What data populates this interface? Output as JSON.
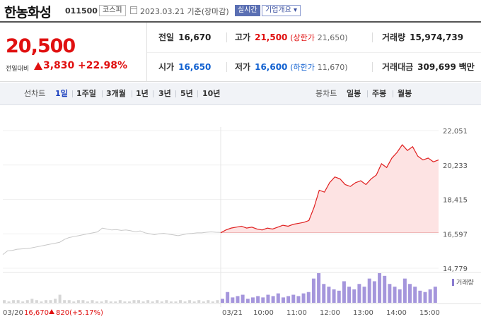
{
  "header": {
    "name": "한농화성",
    "code": "011500",
    "market": "코스피",
    "date": "2023.03.21",
    "date_suffix": "기준(장마감)",
    "realtime": "실시간",
    "overview": "기업개요"
  },
  "price": {
    "current": "20,500",
    "change_label": "전일대비",
    "change": "3,830",
    "percent": "+22.98%",
    "up_color": "#e01010",
    "down_color": "#1060d0"
  },
  "stats": {
    "prev_label": "전일",
    "prev": "16,670",
    "high_label": "고가",
    "high": "21,500",
    "upper_label": "(상한가",
    "upper": "21,650)",
    "volume_label": "거래량",
    "volume": "15,974,739",
    "open_label": "시가",
    "open": "16,650",
    "low_label": "저가",
    "low": "16,600",
    "lower_label": "(하한가",
    "lower": "11,670)",
    "amount_label": "거래대금",
    "amount": "309,699",
    "amount_unit": "백만"
  },
  "toolbar": {
    "line_label": "선차트",
    "periods": [
      "1일",
      "1주일",
      "3개월",
      "1년",
      "3년",
      "5년",
      "10년"
    ],
    "active_period": "1일",
    "candle_label": "봉차트",
    "candles": [
      "일봉",
      "주봉",
      "월봉"
    ]
  },
  "chart_data": {
    "type": "line",
    "y_ticks": [
      "22,051",
      "20,233",
      "18,415",
      "16,597",
      "14,779"
    ],
    "ylim": [
      14779,
      22051
    ],
    "prev_close": 16670,
    "x_labels": [
      "03/21",
      "10:00",
      "11:00",
      "12:00",
      "13:00",
      "14:00",
      "15:00"
    ],
    "volume_label": "거래량",
    "footer_date": "03/20",
    "footer_price": "16,670",
    "footer_change": "820",
    "footer_pct": "(+5.17%)",
    "prev_day_series": [
      15500,
      15700,
      15720,
      15780,
      15800,
      15820,
      15850,
      15900,
      15950,
      16000,
      16050,
      16100,
      16150,
      16300,
      16400,
      16450,
      16500,
      16550,
      16600,
      16650,
      16700,
      16900,
      16850,
      16800,
      16820,
      16780,
      16800,
      16760,
      16700,
      16750,
      16650,
      16600,
      16550,
      16600,
      16620,
      16580,
      16540,
      16500,
      16550,
      16600,
      16620,
      16650,
      16650,
      16680,
      16700,
      16680,
      16670
    ],
    "today_series": [
      16650,
      16800,
      16900,
      16950,
      17000,
      16900,
      16950,
      16850,
      16800,
      16900,
      16850,
      16950,
      17050,
      17000,
      17100,
      17150,
      17200,
      17300,
      18000,
      18900,
      18800,
      19300,
      19600,
      19500,
      19200,
      19100,
      19300,
      19400,
      19200,
      19500,
      19700,
      20300,
      20100,
      20600,
      20900,
      21300,
      21000,
      21200,
      20700,
      20500,
      20600,
      20400,
      20500
    ],
    "prev_volume": [
      2,
      1,
      2,
      2,
      1,
      2,
      3,
      2,
      1,
      2,
      2,
      3,
      6,
      2,
      2,
      1,
      2,
      2,
      1,
      2,
      1,
      1,
      2,
      1,
      1,
      2,
      1,
      1,
      2,
      2,
      1,
      2,
      1,
      2,
      1,
      2,
      1,
      1,
      2,
      1,
      2,
      1,
      2,
      1,
      2,
      1,
      2
    ],
    "today_volume": [
      3,
      8,
      4,
      5,
      6,
      3,
      4,
      5,
      4,
      6,
      5,
      7,
      4,
      5,
      6,
      5,
      7,
      8,
      18,
      22,
      14,
      12,
      10,
      9,
      16,
      12,
      10,
      14,
      12,
      18,
      16,
      22,
      20,
      14,
      12,
      10,
      18,
      14,
      12,
      9,
      8,
      10,
      12
    ]
  }
}
